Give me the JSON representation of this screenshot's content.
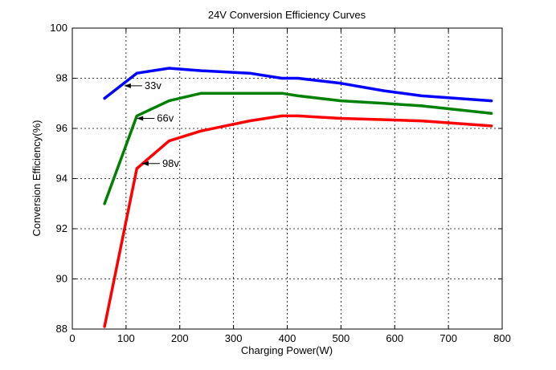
{
  "chart_data": {
    "type": "line",
    "title": "24V Conversion Efficiency Curves",
    "xlabel": "Charging Power(W)",
    "ylabel": "Conversion Efficiency(%)",
    "xlim": [
      0,
      800
    ],
    "ylim": [
      88,
      100
    ],
    "xticks": [
      0,
      100,
      200,
      300,
      400,
      500,
      600,
      700,
      800
    ],
    "yticks": [
      88,
      90,
      92,
      94,
      96,
      98,
      100
    ],
    "grid": true,
    "series": [
      {
        "color": "#0000ff",
        "x": [
          60,
          120,
          180,
          240,
          330,
          390,
          420,
          500,
          580,
          650,
          780
        ],
        "y": [
          97.2,
          98.2,
          98.4,
          98.3,
          98.2,
          98.0,
          98.0,
          97.8,
          97.5,
          97.3,
          97.1
        ]
      },
      {
        "color": "#008000",
        "x": [
          60,
          120,
          180,
          240,
          300,
          390,
          420,
          500,
          580,
          650,
          780
        ],
        "y": [
          93.0,
          96.5,
          97.1,
          97.4,
          97.4,
          97.4,
          97.3,
          97.1,
          97.0,
          96.9,
          96.6
        ]
      },
      {
        "color": "#ff0000",
        "x": [
          60,
          120,
          180,
          240,
          330,
          390,
          420,
          500,
          580,
          650,
          780
        ],
        "y": [
          88.1,
          94.4,
          95.5,
          95.9,
          96.3,
          96.5,
          96.5,
          96.4,
          96.35,
          96.3,
          96.1
        ]
      }
    ],
    "annotations": [
      {
        "text": "33v",
        "x": 97,
        "y": 97.7
      },
      {
        "text": "66v",
        "x": 120,
        "y": 96.4
      },
      {
        "text": "98v",
        "x": 130,
        "y": 94.6
      }
    ]
  }
}
